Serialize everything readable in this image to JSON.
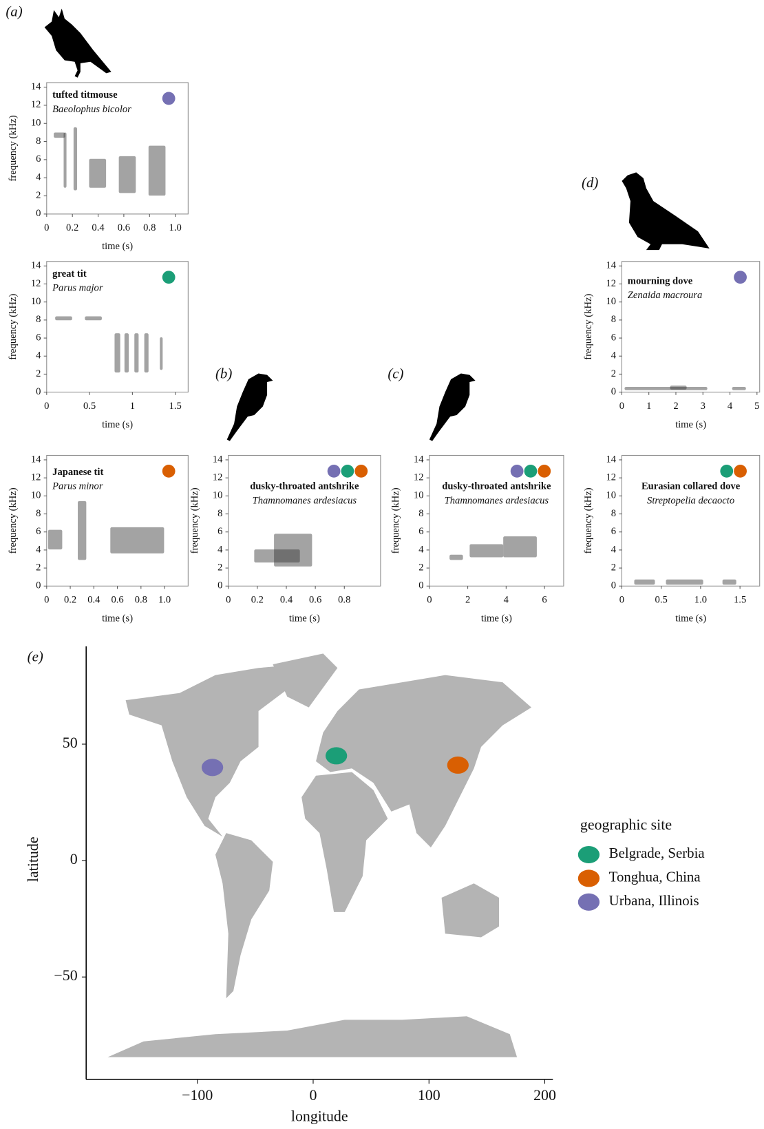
{
  "chart_data": [
    {
      "type": "spectrogram",
      "panel": "(a)",
      "title": "tufted titmouse",
      "subtitle": "Baeolophus bicolor",
      "xlabel": "time (s)",
      "ylabel": "frequency (kHz)",
      "xlim": [
        0,
        1.1
      ],
      "ylim": [
        0,
        14.5
      ],
      "xticks": [
        0,
        0.2,
        0.4,
        0.6,
        0.8,
        {
          "value": 1,
          "label": "1.0"
        }
      ],
      "yticks": [
        0,
        2,
        4,
        6,
        8,
        10,
        12,
        14
      ],
      "site_colors": [
        "#7570b3"
      ]
    },
    {
      "type": "spectrogram",
      "title": "great tit",
      "subtitle": "Parus major",
      "xlabel": "time (s)",
      "ylabel": "frequency (kHz)",
      "xlim": [
        0,
        1.65
      ],
      "ylim": [
        0,
        14.5
      ],
      "xticks": [
        0,
        0.5,
        1,
        1.5
      ],
      "yticks": [
        0,
        2,
        4,
        6,
        8,
        10,
        12,
        14
      ],
      "site_colors": [
        "#1b9e77"
      ]
    },
    {
      "type": "spectrogram",
      "title": "Japanese tit",
      "subtitle": "Parus minor",
      "xlabel": "time (s)",
      "ylabel": "frequency (kHz)",
      "xlim": [
        0,
        1.2
      ],
      "ylim": [
        0,
        14.5
      ],
      "xticks": [
        0,
        0.2,
        0.4,
        0.6,
        0.8,
        {
          "value": 1,
          "label": "1.0"
        }
      ],
      "yticks": [
        0,
        2,
        4,
        6,
        8,
        10,
        12,
        14
      ],
      "site_colors": [
        "#d95f02"
      ]
    },
    {
      "type": "spectrogram",
      "panel": "(b)",
      "title": "dusky-throated antshrike",
      "subtitle": "Thamnomanes ardesiacus",
      "xlabel": "time (s)",
      "ylabel": "frequency (kHz)",
      "xlim": [
        0,
        1.05
      ],
      "ylim": [
        0,
        14.5
      ],
      "xticks": [
        0,
        0.2,
        0.4,
        0.6,
        0.8
      ],
      "yticks": [
        0,
        2,
        4,
        6,
        8,
        10,
        12,
        14
      ],
      "site_colors": [
        "#7570b3",
        "#1b9e77",
        "#d95f02"
      ]
    },
    {
      "type": "spectrogram",
      "panel": "(c)",
      "title": "dusky-throated antshrike",
      "subtitle": "Thamnomanes ardesiacus",
      "xlabel": "time (s)",
      "ylabel": "frequency (kHz)",
      "xlim": [
        0,
        7
      ],
      "ylim": [
        0,
        14.5
      ],
      "xticks": [
        0,
        2,
        4,
        6
      ],
      "yticks": [
        0,
        2,
        4,
        6,
        8,
        10,
        12,
        14
      ],
      "site_colors": [
        "#7570b3",
        "#1b9e77",
        "#d95f02"
      ]
    },
    {
      "type": "spectrogram",
      "panel": "(d)",
      "title": "mourning dove",
      "subtitle": "Zenaida macroura",
      "xlabel": "time (s)",
      "ylabel": "frequency (kHz)",
      "xlim": [
        0,
        5.1
      ],
      "ylim": [
        0,
        14.5
      ],
      "xticks": [
        0,
        1,
        2,
        3,
        4,
        5
      ],
      "yticks": [
        0,
        2,
        4,
        6,
        8,
        10,
        12,
        14
      ],
      "site_colors": [
        "#7570b3"
      ]
    },
    {
      "type": "spectrogram",
      "title": "Eurasian collared dove",
      "subtitle": "Streptopelia decaocto",
      "xlabel": "time (s)",
      "ylabel": "frequency (kHz)",
      "xlim": [
        0,
        1.75
      ],
      "ylim": [
        0,
        14.5
      ],
      "xticks": [
        0,
        0.5,
        {
          "value": 1,
          "label": "1.0"
        },
        1.5
      ],
      "yticks": [
        0,
        2,
        4,
        6,
        8,
        10,
        12,
        14
      ],
      "site_colors": [
        "#1b9e77",
        "#d95f02"
      ]
    },
    {
      "type": "scatter",
      "panel": "(e)",
      "xlabel": "longitude",
      "ylabel": "latitude",
      "xlim": [
        -196,
        207
      ],
      "ylim": [
        -94,
        92
      ],
      "xticks": [
        {
          "value": -100,
          "label": "−100"
        },
        0,
        100,
        200
      ],
      "yticks": [
        {
          "value": -50,
          "label": "−50"
        },
        0,
        50
      ],
      "legend_title": "geographic site",
      "series": [
        {
          "name": "Belgrade, Serbia",
          "color": "#1b9e77",
          "x": [
            20
          ],
          "values": [
            45
          ]
        },
        {
          "name": "Tonghua, China",
          "color": "#d95f02",
          "x": [
            125
          ],
          "values": [
            41
          ]
        },
        {
          "name": "Urbana, Illinois",
          "color": "#7570b3",
          "x": [
            -87
          ],
          "values": [
            40
          ]
        }
      ]
    }
  ]
}
